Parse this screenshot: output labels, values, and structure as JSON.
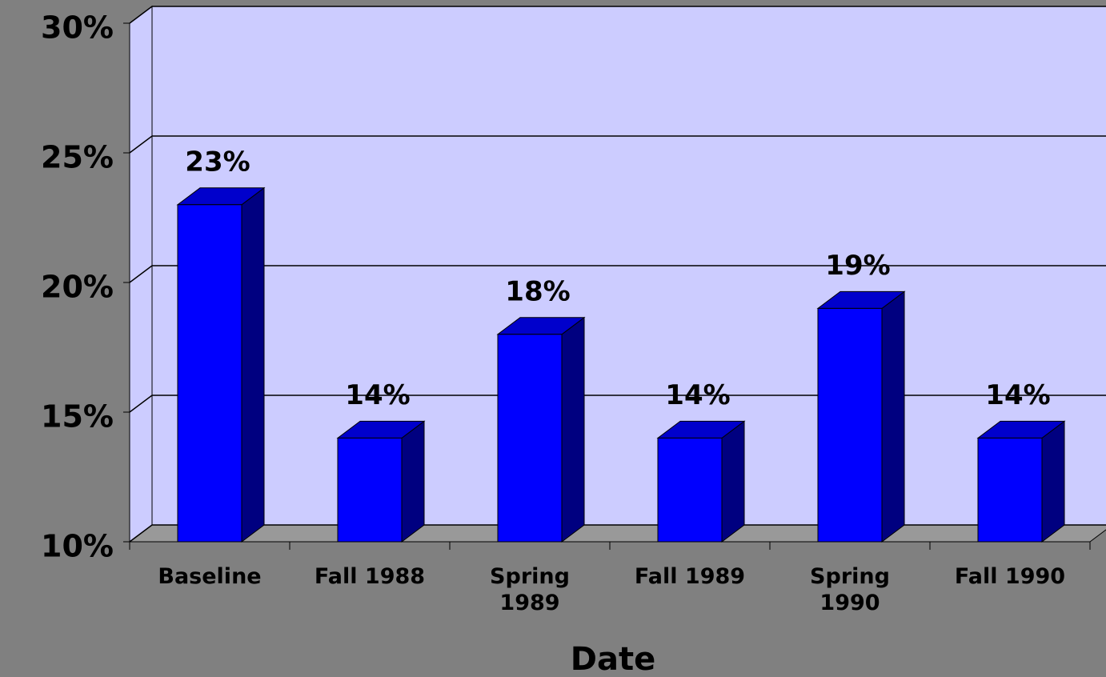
{
  "chart_data": {
    "type": "bar3d",
    "x_label": "Date",
    "categories": [
      "Baseline",
      "Fall 1988",
      "Spring 1989",
      "Fall 1989",
      "Spring 1990",
      "Fall 1990"
    ],
    "values": [
      23,
      14,
      18,
      14,
      19,
      14
    ],
    "value_labels": [
      "23%",
      "14%",
      "18%",
      "14%",
      "19%",
      "14%"
    ],
    "color": "#0000ff",
    "ylim": [
      10,
      30
    ],
    "yticks": [
      {
        "value": 10,
        "label": "10%"
      },
      {
        "value": 15,
        "label": "15%"
      },
      {
        "value": 20,
        "label": "20%"
      },
      {
        "value": 25,
        "label": "25%"
      },
      {
        "value": 30,
        "label": "30%"
      }
    ],
    "grid": true
  }
}
